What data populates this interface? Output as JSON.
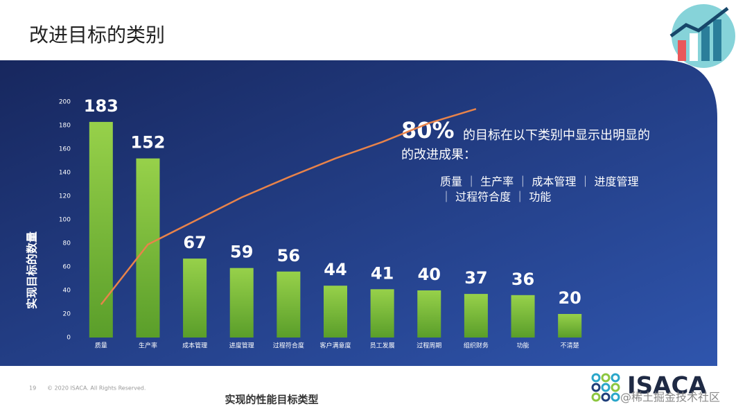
{
  "header": {
    "title": "改进目标的类别"
  },
  "chart_data": {
    "type": "bar",
    "y_label": "实现目标的数量",
    "x_label": "实现的性能目标类型",
    "categories": [
      "质量",
      "生产率",
      "成本管理",
      "进度管理",
      "过程符合度",
      "客户满意度",
      "员工发展",
      "过程周期",
      "组织财务",
      "功能",
      "不清楚"
    ],
    "values": [
      183,
      152,
      67,
      59,
      56,
      44,
      41,
      40,
      37,
      36,
      20
    ],
    "color": "#8cc63f",
    "line_values": [
      28,
      79,
      99,
      119,
      136,
      152,
      166,
      182,
      194,
      null,
      null
    ],
    "line_color": "#e8834a",
    "ylim": [
      0,
      200
    ],
    "yticks": [
      0,
      20,
      40,
      60,
      80,
      100,
      120,
      140,
      160,
      180,
      200
    ]
  },
  "annotation": {
    "percent": "80%",
    "line1": "的目标在以下类别中显示出明显的",
    "line2": "的改进成果：",
    "list1": "质量 ｜ 生产率 ｜ 成本管理 ｜ 进度管理",
    "list2": "｜ 过程符合度 ｜ 功能"
  },
  "footer": {
    "page": "19",
    "copyright": "© 2020 ISACA. All Rights Reserved.",
    "logo": "ISACA",
    "watermark": "@稀土掘金技术社区"
  }
}
